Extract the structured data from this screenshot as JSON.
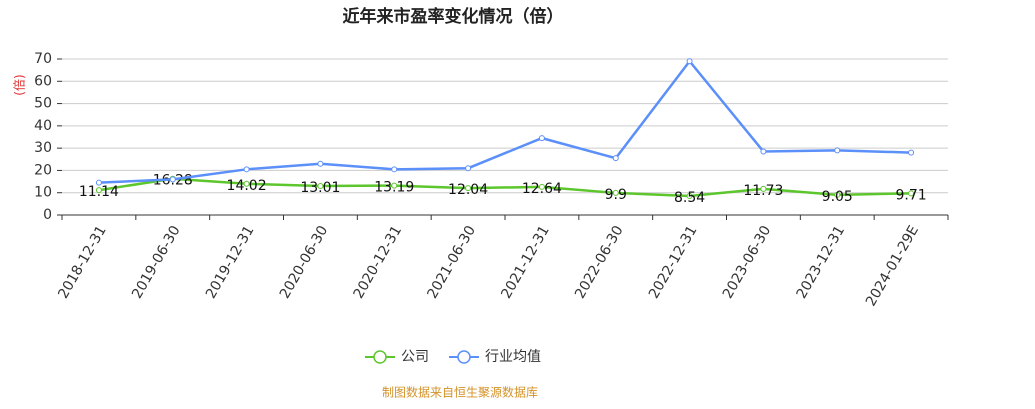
{
  "chart_data": {
    "type": "line",
    "title": "近年来市盈率变化情况（倍）",
    "y_label": "(倍)",
    "source": "制图数据来自恒生聚源数据库",
    "categories": [
      "2018-12-31",
      "2019-06-30",
      "2019-12-31",
      "2020-06-30",
      "2020-12-31",
      "2021-06-30",
      "2021-12-31",
      "2022-06-30",
      "2022-12-31",
      "2023-06-30",
      "2023-12-31",
      "2024-01-29E"
    ],
    "series": [
      {
        "name": "公司",
        "color": "#5cc62c",
        "values": [
          11.14,
          16.28,
          14.02,
          13.01,
          13.19,
          12.04,
          12.64,
          9.9,
          8.54,
          11.73,
          9.05,
          9.71
        ],
        "show_labels": true
      },
      {
        "name": "行业均值",
        "color": "#5b8ff9",
        "values": [
          14.5,
          16,
          20.5,
          23,
          20.5,
          21,
          34.5,
          25.5,
          69,
          28.5,
          29,
          28
        ]
      }
    ],
    "ylim": [
      0,
      70
    ],
    "yticks": [
      0,
      10,
      20,
      30,
      40,
      50,
      60,
      70
    ],
    "grid": true
  }
}
